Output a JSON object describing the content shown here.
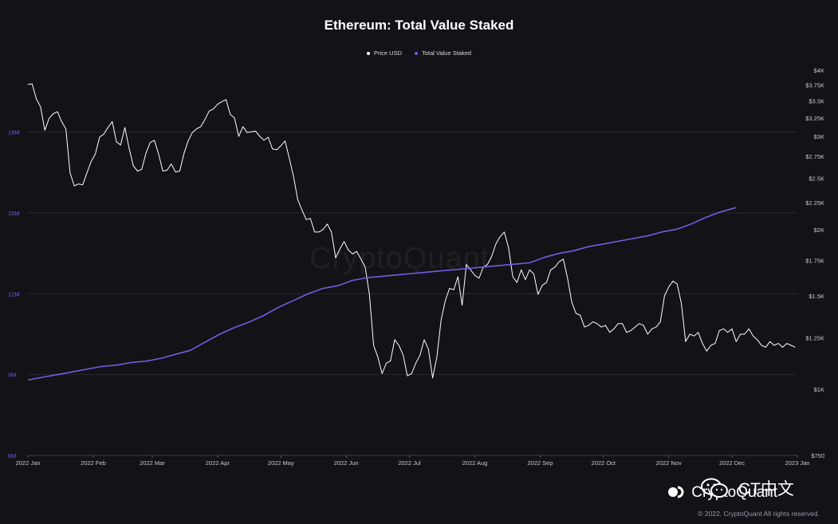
{
  "chart_data": {
    "type": "line",
    "title": "Ethereum: Total Value Staked",
    "legend": [
      {
        "name": "Price USD",
        "color": "#ffffff"
      },
      {
        "name": "Total Value Staked",
        "color": "#6d5fe0"
      }
    ],
    "legend_placement": "top-center",
    "grid": true,
    "x_ticks": [
      "2022 Jan",
      "2022 Feb",
      "2022 Mar",
      "2022 Apr",
      "2022 May",
      "2022 Jun",
      "2022 Jul",
      "2022 Aug",
      "2022 Sep",
      "2022 Oct",
      "2022 Nov",
      "2022 Dec",
      "2023 Jan"
    ],
    "y_left": {
      "ticks": [
        "6M",
        "9M",
        "12M",
        "15M",
        "18M"
      ],
      "tick_values": [
        6,
        9,
        12,
        15,
        18
      ],
      "range": [
        6,
        20.3
      ],
      "color": "#6d5fe0"
    },
    "y_right": {
      "ticks": [
        "$750",
        "$1K",
        "$1.25K",
        "$1.5K",
        "$1.75K",
        "$2K",
        "$2.25K",
        "$2.5K",
        "$2.75K",
        "$3K",
        "$3.25K",
        "$3.5K",
        "$3.75K",
        "$4K"
      ],
      "tick_values": [
        750,
        1000,
        1250,
        1500,
        1750,
        2000,
        2250,
        2500,
        2750,
        3000,
        3250,
        3500,
        3750,
        4000
      ],
      "scale": "log",
      "range": [
        750,
        4000
      ]
    },
    "series": [
      {
        "name": "Price USD",
        "color": "#ffffff",
        "axis": "right",
        "x": [
          "2022-01-01",
          "2022-01-03",
          "2022-01-05",
          "2022-01-07",
          "2022-01-09",
          "2022-01-11",
          "2022-01-13",
          "2022-01-15",
          "2022-01-17",
          "2022-01-19",
          "2022-01-21",
          "2022-01-23",
          "2022-01-25",
          "2022-01-27",
          "2022-01-29",
          "2022-01-31",
          "2022-02-02",
          "2022-02-04",
          "2022-02-06",
          "2022-02-08",
          "2022-02-10",
          "2022-02-12",
          "2022-02-14",
          "2022-02-16",
          "2022-02-18",
          "2022-02-20",
          "2022-02-22",
          "2022-02-24",
          "2022-02-26",
          "2022-02-28",
          "2022-03-02",
          "2022-03-04",
          "2022-03-06",
          "2022-03-08",
          "2022-03-10",
          "2022-03-12",
          "2022-03-14",
          "2022-03-16",
          "2022-03-18",
          "2022-03-20",
          "2022-03-22",
          "2022-03-24",
          "2022-03-26",
          "2022-03-28",
          "2022-03-30",
          "2022-04-01",
          "2022-04-03",
          "2022-04-05",
          "2022-04-07",
          "2022-04-09",
          "2022-04-11",
          "2022-04-13",
          "2022-04-15",
          "2022-04-17",
          "2022-04-19",
          "2022-04-21",
          "2022-04-23",
          "2022-04-25",
          "2022-04-27",
          "2022-04-29",
          "2022-05-01",
          "2022-05-03",
          "2022-05-05",
          "2022-05-07",
          "2022-05-09",
          "2022-05-11",
          "2022-05-13",
          "2022-05-15",
          "2022-05-17",
          "2022-05-19",
          "2022-05-21",
          "2022-05-23",
          "2022-05-25",
          "2022-05-27",
          "2022-05-29",
          "2022-05-31",
          "2022-06-02",
          "2022-06-04",
          "2022-06-06",
          "2022-06-08",
          "2022-06-10",
          "2022-06-12",
          "2022-06-14",
          "2022-06-16",
          "2022-06-18",
          "2022-06-20",
          "2022-06-22",
          "2022-06-24",
          "2022-06-26",
          "2022-06-28",
          "2022-06-30",
          "2022-07-02",
          "2022-07-04",
          "2022-07-06",
          "2022-07-08",
          "2022-07-10",
          "2022-07-12",
          "2022-07-14",
          "2022-07-16",
          "2022-07-18",
          "2022-07-20",
          "2022-07-22",
          "2022-07-24",
          "2022-07-26",
          "2022-07-28",
          "2022-07-30",
          "2022-08-01",
          "2022-08-03",
          "2022-08-05",
          "2022-08-07",
          "2022-08-09",
          "2022-08-11",
          "2022-08-13",
          "2022-08-15",
          "2022-08-17",
          "2022-08-19",
          "2022-08-21",
          "2022-08-23",
          "2022-08-25",
          "2022-08-27",
          "2022-08-29",
          "2022-08-31",
          "2022-09-02",
          "2022-09-04",
          "2022-09-06",
          "2022-09-08",
          "2022-09-10",
          "2022-09-12",
          "2022-09-14",
          "2022-09-16",
          "2022-09-18",
          "2022-09-20",
          "2022-09-22",
          "2022-09-24",
          "2022-09-26",
          "2022-09-28",
          "2022-09-30",
          "2022-10-02",
          "2022-10-04",
          "2022-10-06",
          "2022-10-08",
          "2022-10-10",
          "2022-10-12",
          "2022-10-14",
          "2022-10-16",
          "2022-10-18",
          "2022-10-20",
          "2022-10-22",
          "2022-10-24",
          "2022-10-26",
          "2022-10-28",
          "2022-10-30",
          "2022-11-01",
          "2022-11-03",
          "2022-11-05",
          "2022-11-07",
          "2022-11-09",
          "2022-11-11",
          "2022-11-13",
          "2022-11-15",
          "2022-11-17",
          "2022-11-19",
          "2022-11-21",
          "2022-11-23",
          "2022-11-25",
          "2022-11-27",
          "2022-11-29",
          "2022-12-01",
          "2022-12-03",
          "2022-12-05",
          "2022-12-07",
          "2022-12-09",
          "2022-12-11",
          "2022-12-13",
          "2022-12-15",
          "2022-12-17",
          "2022-12-19",
          "2022-12-21",
          "2022-12-23",
          "2022-12-25",
          "2022-12-27",
          "2022-12-29",
          "2022-12-31"
        ],
        "values": [
          3760,
          3770,
          3530,
          3410,
          3080,
          3240,
          3310,
          3340,
          3200,
          3100,
          2560,
          2420,
          2440,
          2430,
          2560,
          2690,
          2780,
          2990,
          3030,
          3120,
          3200,
          2930,
          2890,
          3120,
          2850,
          2640,
          2580,
          2600,
          2790,
          2920,
          2950,
          2780,
          2580,
          2590,
          2660,
          2570,
          2580,
          2780,
          2940,
          3050,
          3100,
          3130,
          3230,
          3350,
          3380,
          3450,
          3490,
          3520,
          3300,
          3250,
          3000,
          3130,
          3050,
          3060,
          3070,
          3000,
          2950,
          2990,
          2840,
          2830,
          2880,
          2940,
          2730,
          2520,
          2280,
          2180,
          2090,
          2100,
          1980,
          1980,
          2000,
          2050,
          1980,
          1770,
          1840,
          1900,
          1830,
          1800,
          1820,
          1760,
          1700,
          1510,
          1210,
          1150,
          1070,
          1120,
          1130,
          1240,
          1210,
          1160,
          1060,
          1070,
          1120,
          1160,
          1240,
          1190,
          1050,
          1150,
          1350,
          1470,
          1550,
          1540,
          1630,
          1440,
          1720,
          1680,
          1640,
          1620,
          1700,
          1720,
          1780,
          1880,
          1940,
          1980,
          1850,
          1630,
          1590,
          1680,
          1610,
          1680,
          1650,
          1510,
          1570,
          1590,
          1680,
          1700,
          1740,
          1760,
          1620,
          1460,
          1390,
          1380,
          1310,
          1320,
          1340,
          1330,
          1310,
          1320,
          1280,
          1300,
          1330,
          1330,
          1280,
          1290,
          1310,
          1330,
          1320,
          1270,
          1300,
          1310,
          1340,
          1500,
          1560,
          1600,
          1580,
          1450,
          1230,
          1270,
          1260,
          1280,
          1220,
          1180,
          1210,
          1220,
          1290,
          1300,
          1280,
          1300,
          1230,
          1270,
          1270,
          1300,
          1260,
          1240,
          1210,
          1200,
          1230,
          1210,
          1220,
          1200,
          1220,
          1210,
          1200
        ]
      },
      {
        "name": "Total Value Staked",
        "color": "#6d5fe0",
        "axis": "left",
        "x": [
          "2022-01-01",
          "2022-01-08",
          "2022-01-15",
          "2022-01-22",
          "2022-01-29",
          "2022-02-05",
          "2022-02-12",
          "2022-02-19",
          "2022-02-26",
          "2022-03-05",
          "2022-03-12",
          "2022-03-19",
          "2022-03-26",
          "2022-04-02",
          "2022-04-09",
          "2022-04-16",
          "2022-04-23",
          "2022-04-30",
          "2022-05-07",
          "2022-05-14",
          "2022-05-21",
          "2022-05-28",
          "2022-06-04",
          "2022-06-11",
          "2022-06-18",
          "2022-06-25",
          "2022-07-02",
          "2022-07-09",
          "2022-07-16",
          "2022-07-23",
          "2022-07-30",
          "2022-08-06",
          "2022-08-13",
          "2022-08-20",
          "2022-08-27",
          "2022-09-03",
          "2022-09-10",
          "2022-09-17",
          "2022-09-24",
          "2022-10-01",
          "2022-10-08",
          "2022-10-15",
          "2022-10-22",
          "2022-10-29",
          "2022-11-05",
          "2022-11-12",
          "2022-11-19",
          "2022-11-26",
          "2022-12-03"
        ],
        "values": [
          8.8,
          8.9,
          9.0,
          9.1,
          9.2,
          9.3,
          9.35,
          9.45,
          9.5,
          9.6,
          9.75,
          9.9,
          10.2,
          10.5,
          10.75,
          10.95,
          11.2,
          11.5,
          11.75,
          12.0,
          12.2,
          12.3,
          12.5,
          12.6,
          12.65,
          12.7,
          12.75,
          12.8,
          12.85,
          12.9,
          12.95,
          13.0,
          13.05,
          13.1,
          13.15,
          13.35,
          13.5,
          13.6,
          13.75,
          13.85,
          13.95,
          14.05,
          14.15,
          14.3,
          14.4,
          14.6,
          14.85,
          15.05,
          15.2
        ]
      }
    ]
  },
  "watermark": "CryptoQuant",
  "footer": {
    "logo_text": "CryptoQuant",
    "wechat_label": "CT中文",
    "copyright": "© 2022. CryptoQuant All rights reserved."
  }
}
